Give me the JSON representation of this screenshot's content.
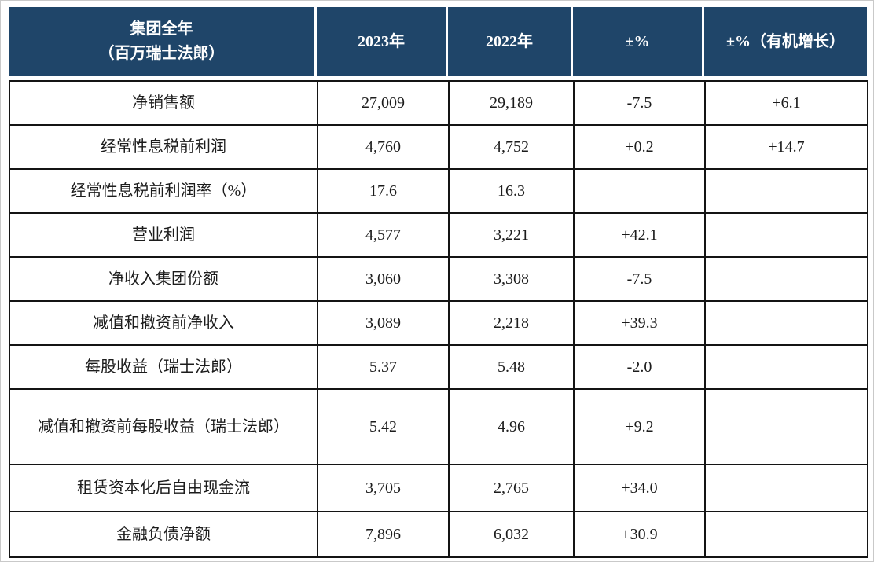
{
  "colors": {
    "header_bg": "#1F4569",
    "header_text": "#ffffff",
    "body_border": "#141414",
    "body_text": "#1c1c1c",
    "page_bg": "#ffffff"
  },
  "table": {
    "header": {
      "col1_line1": "集团全年",
      "col1_line2": "（百万瑞士法郎）",
      "columns": [
        "2023年",
        "2022年",
        "±%",
        "±%（有机增长）"
      ]
    },
    "rows": [
      {
        "label": "净销售额",
        "y2023": "27,009",
        "y2022": "29,189",
        "pct": "-7.5",
        "organic": "+6.1"
      },
      {
        "label": "经常性息税前利润",
        "y2023": "4,760",
        "y2022": "4,752",
        "pct": "+0.2",
        "organic": "+14.7"
      },
      {
        "label": "经常性息税前利润率（%）",
        "y2023": "17.6",
        "y2022": "16.3",
        "pct": "",
        "organic": ""
      },
      {
        "label": "营业利润",
        "y2023": "4,577",
        "y2022": "3,221",
        "pct": "+42.1",
        "organic": ""
      },
      {
        "label": "净收入集团份额",
        "y2023": "3,060",
        "y2022": "3,308",
        "pct": "-7.5",
        "organic": ""
      },
      {
        "label": "减值和撤资前净收入",
        "y2023": "3,089",
        "y2022": "2,218",
        "pct": "+39.3",
        "organic": ""
      },
      {
        "label": "每股收益（瑞士法郎）",
        "y2023": "5.37",
        "y2022": "5.48",
        "pct": "-2.0",
        "organic": ""
      },
      {
        "label": "减值和撤资前每股收益（瑞士法郎）",
        "y2023": "5.42",
        "y2022": "4.96",
        "pct": "+9.2",
        "organic": ""
      },
      {
        "label": "租赁资本化后自由现金流",
        "y2023": "3,705",
        "y2022": "2,765",
        "pct": "+34.0",
        "organic": ""
      },
      {
        "label": "金融负债净额",
        "y2023": "7,896",
        "y2022": "6,032",
        "pct": "+30.9",
        "organic": ""
      }
    ]
  },
  "chart_data": {
    "type": "table",
    "title": "集团全年（百万瑞士法郎）",
    "columns": [
      "集团全年（百万瑞士法郎）",
      "2023年",
      "2022年",
      "±%",
      "±%（有机增长）"
    ],
    "rows": [
      [
        "净销售额",
        "27,009",
        "29,189",
        "-7.5",
        "+6.1"
      ],
      [
        "经常性息税前利润",
        "4,760",
        "4,752",
        "+0.2",
        "+14.7"
      ],
      [
        "经常性息税前利润率（%）",
        "17.6",
        "16.3",
        "",
        ""
      ],
      [
        "营业利润",
        "4,577",
        "3,221",
        "+42.1",
        ""
      ],
      [
        "净收入集团份额",
        "3,060",
        "3,308",
        "-7.5",
        ""
      ],
      [
        "减值和撤资前净收入",
        "3,089",
        "2,218",
        "+39.3",
        ""
      ],
      [
        "每股收益（瑞士法郎）",
        "5.37",
        "5.48",
        "-2.0",
        ""
      ],
      [
        "减值和撤资前每股收益（瑞士法郎）",
        "5.42",
        "4.96",
        "+9.2",
        ""
      ],
      [
        "租赁资本化后自由现金流",
        "3,705",
        "2,765",
        "+34.0",
        ""
      ],
      [
        "金融负债净额",
        "7,896",
        "6,032",
        "+30.9",
        ""
      ]
    ]
  }
}
